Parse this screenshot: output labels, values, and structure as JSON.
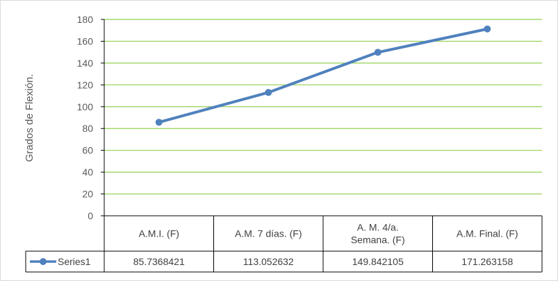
{
  "chart_data": {
    "type": "line",
    "title": "",
    "xlabel": "",
    "ylabel": "Grados de Flexión.",
    "ylim": [
      0,
      180
    ],
    "yticks": [
      0,
      20,
      40,
      60,
      80,
      100,
      120,
      140,
      160,
      180
    ],
    "grid": true,
    "legend": "data-table-left",
    "categories": [
      [
        "A.M.I. (F)"
      ],
      [
        "A.M. 7 días. (F)"
      ],
      [
        "A. M. 4/a.",
        "Semana. (F)"
      ],
      [
        "A.M. Final. (F)"
      ]
    ],
    "series": [
      {
        "name": "Series1",
        "color": "#4f81bd",
        "values": [
          85.7368421,
          113.052632,
          149.842105,
          171.263158
        ],
        "value_labels": [
          "85.7368421",
          "113.052632",
          "149.842105",
          "171.263158"
        ]
      }
    ],
    "colors": {
      "grid": "#92d050",
      "axis": "#000000",
      "table_border": "#000000"
    }
  }
}
